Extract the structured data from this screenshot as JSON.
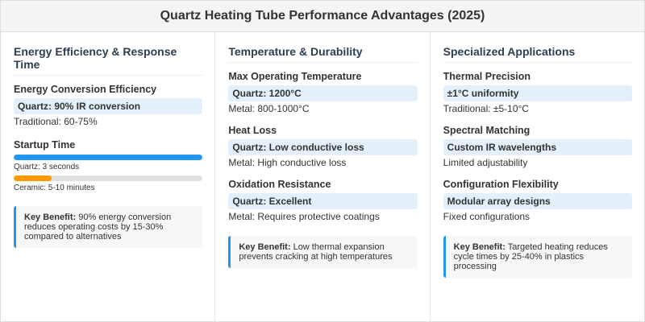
{
  "title": "Quartz Heating Tube Performance Advantages (2025)",
  "colors": {
    "accent": "#2196f3",
    "ceramic": "#ff9800",
    "highlight": "#e3f0fb"
  },
  "columns": [
    {
      "heading": "Energy Efficiency & Response Time",
      "item1": {
        "title": "Energy Conversion Efficiency",
        "highlight": "Quartz: 90% IR conversion",
        "sub": "Traditional: 60-75%"
      },
      "startup": {
        "title": "Startup Time",
        "bars": [
          {
            "label": "Quartz: 3 seconds",
            "fill": 1.0
          },
          {
            "label": "Ceramic: 5-10 minutes",
            "fill": 0.2
          }
        ]
      },
      "key": {
        "label": "Key Benefit:",
        "text": " 90% energy conversion reduces operating costs by 15-30% compared to alternatives"
      }
    },
    {
      "heading": "Temperature & Durability",
      "items": [
        {
          "title": "Max Operating Temperature",
          "highlight": "Quartz: 1200°C",
          "sub": "Metal: 800-1000°C"
        },
        {
          "title": "Heat Loss",
          "highlight": "Quartz: Low conductive loss",
          "sub": "Metal: High conductive loss"
        },
        {
          "title": "Oxidation Resistance",
          "highlight": "Quartz: Excellent",
          "sub": "Metal: Requires protective coatings"
        }
      ],
      "key": {
        "label": "Key Benefit:",
        "text": " Low thermal expansion prevents cracking at high temperatures"
      }
    },
    {
      "heading": "Specialized Applications",
      "items": [
        {
          "title": "Thermal Precision",
          "highlight": "±1°C uniformity",
          "sub": "Traditional: ±5-10°C"
        },
        {
          "title": "Spectral Matching",
          "highlight": "Custom IR wavelengths",
          "sub": "Limited adjustability"
        },
        {
          "title": "Configuration Flexibility",
          "highlight": "Modular array designs",
          "sub": "Fixed configurations"
        }
      ],
      "key": {
        "label": "Key Benefit:",
        "text": " Targeted heating reduces cycle times by 25-40% in plastics processing"
      }
    }
  ]
}
